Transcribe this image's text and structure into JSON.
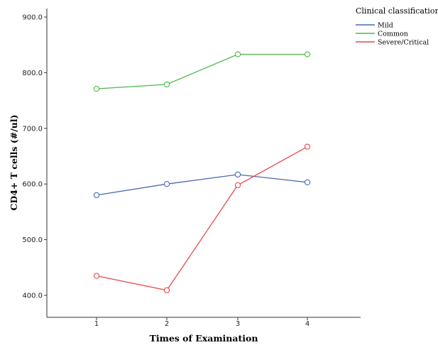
{
  "chart_data": {
    "type": "line",
    "title": "",
    "xlabel": "Times of Examination",
    "ylabel": "CD4+ T cells (#/ul)",
    "x": [
      1,
      2,
      3,
      4
    ],
    "x_tick_labels": [
      "1",
      "2",
      "3",
      "4"
    ],
    "ylim": [
      380,
      920
    ],
    "y_ticks": [
      400,
      500,
      600,
      700,
      800,
      900
    ],
    "y_tick_labels": [
      "400.0",
      "500.0",
      "600.0",
      "700.0",
      "800.0",
      "900.0"
    ],
    "grid": false,
    "legend": {
      "title": "Clinical classifications",
      "placement": "top-right"
    },
    "series": [
      {
        "name": "Mild",
        "color": "#4a69b5",
        "values": [
          580,
          600,
          617,
          603
        ]
      },
      {
        "name": "Common",
        "color": "#4bb84a",
        "values": [
          771,
          779,
          833,
          833
        ]
      },
      {
        "name": "Severe/Critical",
        "color": "#e8484d",
        "values": [
          435,
          409,
          598,
          667
        ]
      }
    ]
  }
}
